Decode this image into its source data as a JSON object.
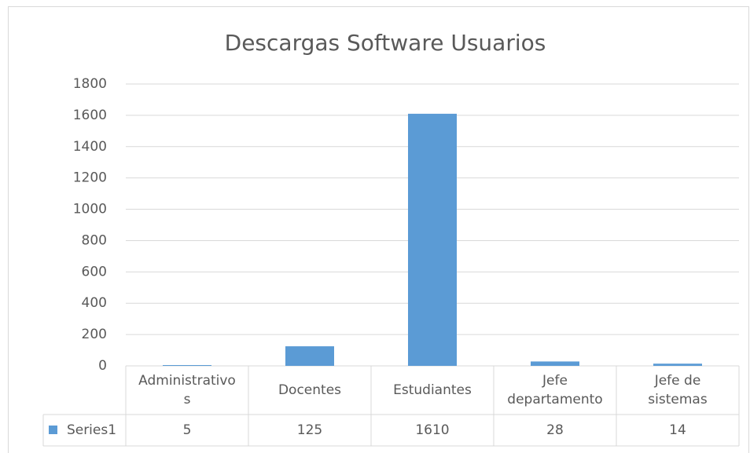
{
  "chart_data": {
    "type": "bar",
    "title": "Descargas Software Usuarios",
    "categories": [
      "Administrativos",
      "Docentes",
      "Estudiantes",
      "Jefe departamento",
      "Jefe de sistemas"
    ],
    "series": [
      {
        "name": "Series1",
        "color": "#5b9bd5",
        "values": [
          5,
          125,
          1610,
          28,
          14
        ]
      }
    ],
    "ylim": [
      0,
      1800
    ],
    "yticks": [
      0,
      200,
      400,
      600,
      800,
      1000,
      1200,
      1400,
      1600,
      1800
    ],
    "grid": true
  }
}
